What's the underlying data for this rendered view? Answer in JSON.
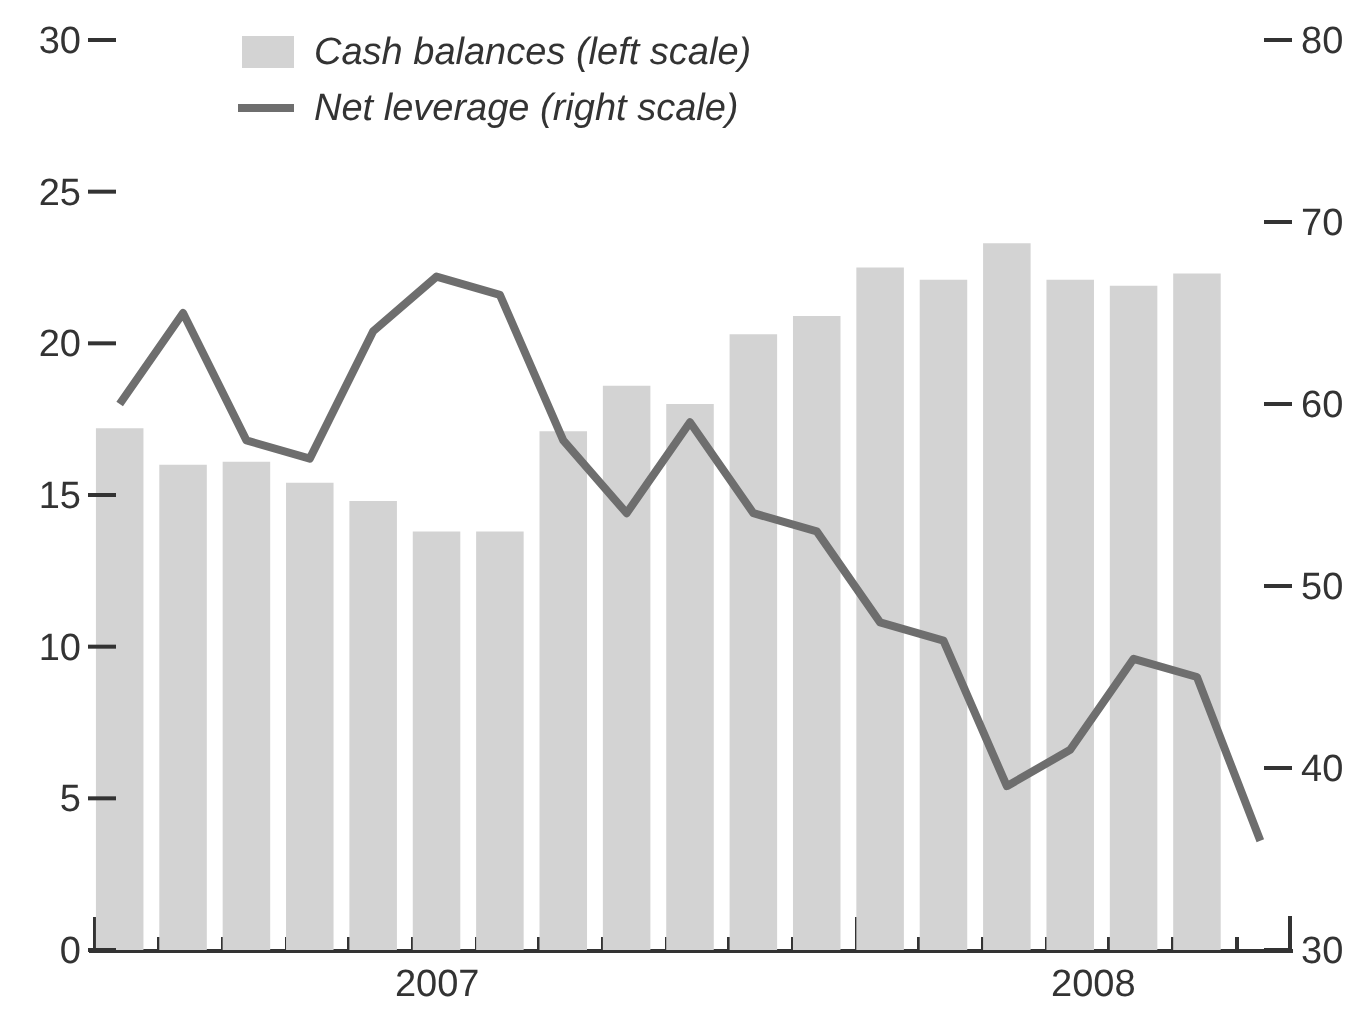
{
  "chart_data": {
    "type": "bar",
    "categories": [
      null,
      null,
      null,
      null,
      null,
      null,
      null,
      null,
      null,
      null,
      null,
      null,
      null,
      null,
      null,
      null,
      null,
      null,
      null
    ],
    "series": [
      {
        "name": "Cash balances (left scale)",
        "type": "bar",
        "color": "#d3d3d3",
        "values": [
          17.2,
          16.0,
          16.1,
          15.4,
          14.8,
          13.8,
          13.8,
          17.1,
          18.6,
          18.0,
          20.3,
          20.9,
          22.5,
          22.1,
          23.3,
          22.1,
          21.9,
          22.3,
          null
        ]
      },
      {
        "name": "Net leverage (right scale)",
        "type": "line",
        "axis": "y2",
        "color": "#6e6e6e",
        "values": [
          60,
          65,
          58,
          57,
          64,
          67,
          66,
          58,
          54,
          59,
          54,
          53,
          48,
          47,
          39,
          41,
          46,
          45,
          36
        ]
      }
    ],
    "annotations": [
      "2007",
      "2008"
    ],
    "ylim": [
      0,
      30
    ],
    "yticks": [
      0,
      5,
      10,
      15,
      20,
      25,
      30
    ],
    "y2lim": [
      30,
      80
    ],
    "y2ticks": [
      30,
      40,
      50,
      60,
      70,
      80
    ],
    "grid": false,
    "legend": "top left",
    "marker": "none",
    "line_style": "solid"
  }
}
